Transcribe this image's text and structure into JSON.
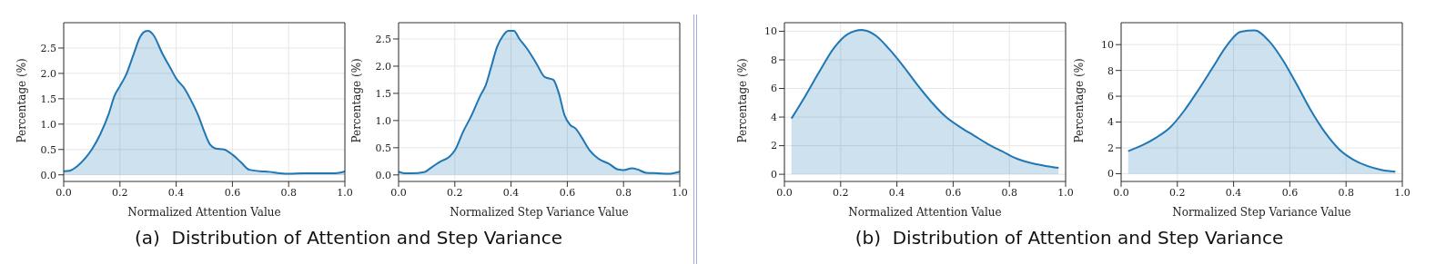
{
  "chart_data": [
    {
      "type": "area",
      "xlabel": "Normalized Attention Value",
      "ylabel": "Percentage (%)",
      "xlim": [
        0,
        1
      ],
      "ylim": [
        -0.13,
        3.0
      ],
      "xticks": [
        {
          "value": 0,
          "label": "0.0"
        },
        {
          "value": 0.2,
          "label": "0.2"
        },
        {
          "value": 0.4,
          "label": "0.4"
        },
        {
          "value": 0.6,
          "label": "0.6"
        },
        {
          "value": 0.8,
          "label": "0.8"
        },
        {
          "value": 1,
          "label": "1.0"
        }
      ],
      "yticks": [
        {
          "value": 0,
          "label": "0.0"
        },
        {
          "value": 0.5,
          "label": "0.5"
        },
        {
          "value": 1,
          "label": "1.0"
        },
        {
          "value": 1.5,
          "label": "1.5"
        },
        {
          "value": 2,
          "label": "2.0"
        },
        {
          "value": 2.5,
          "label": "2.5"
        }
      ],
      "grid": true,
      "annotations": [
        "(a)  Distribution of Attention and Step Variance"
      ],
      "x": [
        0,
        0.02,
        0.05,
        0.08,
        0.1,
        0.13,
        0.16,
        0.18,
        0.2,
        0.22,
        0.25,
        0.27,
        0.29,
        0.3,
        0.32,
        0.35,
        0.38,
        0.4,
        0.43,
        0.45,
        0.48,
        0.5,
        0.52,
        0.54,
        0.57,
        0.6,
        0.63,
        0.66,
        0.7,
        0.73,
        0.77,
        0.8,
        0.85,
        0.9,
        0.95,
        0.98,
        1.0
      ],
      "series": [
        {
          "color": "#1f77b4",
          "values": [
            0.07,
            0.08,
            0.18,
            0.35,
            0.5,
            0.8,
            1.2,
            1.55,
            1.75,
            1.95,
            2.4,
            2.7,
            2.83,
            2.84,
            2.75,
            2.4,
            2.1,
            1.9,
            1.7,
            1.5,
            1.15,
            0.85,
            0.6,
            0.52,
            0.5,
            0.4,
            0.25,
            0.1,
            0.07,
            0.06,
            0.03,
            0.02,
            0.03,
            0.03,
            0.03,
            0.04,
            0.07
          ]
        }
      ]
    },
    {
      "type": "area",
      "xlabel": "Normalized Step Variance Value",
      "ylabel": "Percentage (%)",
      "xlim": [
        0,
        1
      ],
      "ylim": [
        -0.12,
        2.8
      ],
      "xticks": [
        {
          "value": 0,
          "label": "0.0"
        },
        {
          "value": 0.2,
          "label": "0.2"
        },
        {
          "value": 0.4,
          "label": "0.4"
        },
        {
          "value": 0.6,
          "label": "0.6"
        },
        {
          "value": 0.8,
          "label": "0.8"
        },
        {
          "value": 1,
          "label": "1.0"
        }
      ],
      "yticks": [
        {
          "value": 0,
          "label": "0.0"
        },
        {
          "value": 0.5,
          "label": "0.5"
        },
        {
          "value": 1,
          "label": "1.0"
        },
        {
          "value": 1.5,
          "label": "1.5"
        },
        {
          "value": 2,
          "label": "2.0"
        },
        {
          "value": 2.5,
          "label": "2.5"
        }
      ],
      "grid": true,
      "x": [
        0,
        0.02,
        0.05,
        0.09,
        0.12,
        0.15,
        0.18,
        0.2,
        0.23,
        0.26,
        0.29,
        0.31,
        0.33,
        0.35,
        0.37,
        0.39,
        0.41,
        0.43,
        0.46,
        0.49,
        0.52,
        0.55,
        0.57,
        0.59,
        0.61,
        0.63,
        0.65,
        0.68,
        0.71,
        0.75,
        0.78,
        0.8,
        0.83,
        0.85,
        0.88,
        0.92,
        0.96,
        1.0
      ],
      "series": [
        {
          "color": "#1f77b4",
          "values": [
            0.06,
            0.03,
            0.03,
            0.05,
            0.15,
            0.25,
            0.33,
            0.45,
            0.8,
            1.1,
            1.45,
            1.65,
            2.0,
            2.35,
            2.55,
            2.65,
            2.65,
            2.5,
            2.3,
            2.05,
            1.8,
            1.75,
            1.5,
            1.1,
            0.92,
            0.85,
            0.7,
            0.45,
            0.3,
            0.2,
            0.1,
            0.09,
            0.12,
            0.1,
            0.04,
            0.03,
            0.02,
            0.06
          ]
        }
      ]
    },
    {
      "type": "area",
      "xlabel": "Normalized Attention Value",
      "ylabel": "Percentage (%)",
      "xlim": [
        0,
        1
      ],
      "ylim": [
        -0.5,
        10.6
      ],
      "xticks": [
        {
          "value": 0,
          "label": "0.0"
        },
        {
          "value": 0.2,
          "label": "0.2"
        },
        {
          "value": 0.4,
          "label": "0.4"
        },
        {
          "value": 0.6,
          "label": "0.6"
        },
        {
          "value": 0.8,
          "label": "0.8"
        },
        {
          "value": 1,
          "label": "1.0"
        }
      ],
      "yticks": [
        0,
        2,
        4,
        6,
        8,
        10
      ],
      "grid": true,
      "annotations": [
        "(b)  Distribution of Attention and Step Variance"
      ],
      "x": [
        0.025,
        0.075,
        0.125,
        0.175,
        0.225,
        0.275,
        0.325,
        0.375,
        0.425,
        0.475,
        0.525,
        0.575,
        0.625,
        0.675,
        0.725,
        0.775,
        0.825,
        0.875,
        0.925,
        0.975
      ],
      "series": [
        {
          "color": "#1f77b4",
          "values": [
            3.9,
            5.5,
            7.2,
            8.8,
            9.8,
            10.1,
            9.7,
            8.7,
            7.5,
            6.2,
            5.0,
            4.0,
            3.3,
            2.7,
            2.1,
            1.6,
            1.1,
            0.8,
            0.6,
            0.45
          ]
        }
      ]
    },
    {
      "type": "area",
      "xlabel": "Normalized Step Variance Value",
      "ylabel": "Percentage (%)",
      "xlim": [
        0,
        1
      ],
      "ylim": [
        -0.6,
        11.7
      ],
      "xticks": [
        {
          "value": 0,
          "label": "0.0"
        },
        {
          "value": 0.2,
          "label": "0.2"
        },
        {
          "value": 0.4,
          "label": "0.4"
        },
        {
          "value": 0.6,
          "label": "0.6"
        },
        {
          "value": 0.8,
          "label": "0.8"
        },
        {
          "value": 1,
          "label": "1.0"
        }
      ],
      "yticks": [
        0,
        2,
        4,
        6,
        8,
        10
      ],
      "grid": true,
      "x": [
        0.025,
        0.075,
        0.125,
        0.175,
        0.225,
        0.275,
        0.325,
        0.375,
        0.425,
        0.475,
        0.525,
        0.575,
        0.625,
        0.675,
        0.725,
        0.775,
        0.825,
        0.875,
        0.925,
        0.975
      ],
      "series": [
        {
          "color": "#1f77b4",
          "values": [
            1.75,
            2.2,
            2.8,
            3.6,
            4.9,
            6.5,
            8.2,
            9.9,
            11.0,
            11.1,
            10.3,
            8.8,
            6.9,
            4.9,
            3.2,
            1.9,
            1.1,
            0.6,
            0.3,
            0.15
          ]
        }
      ]
    }
  ]
}
